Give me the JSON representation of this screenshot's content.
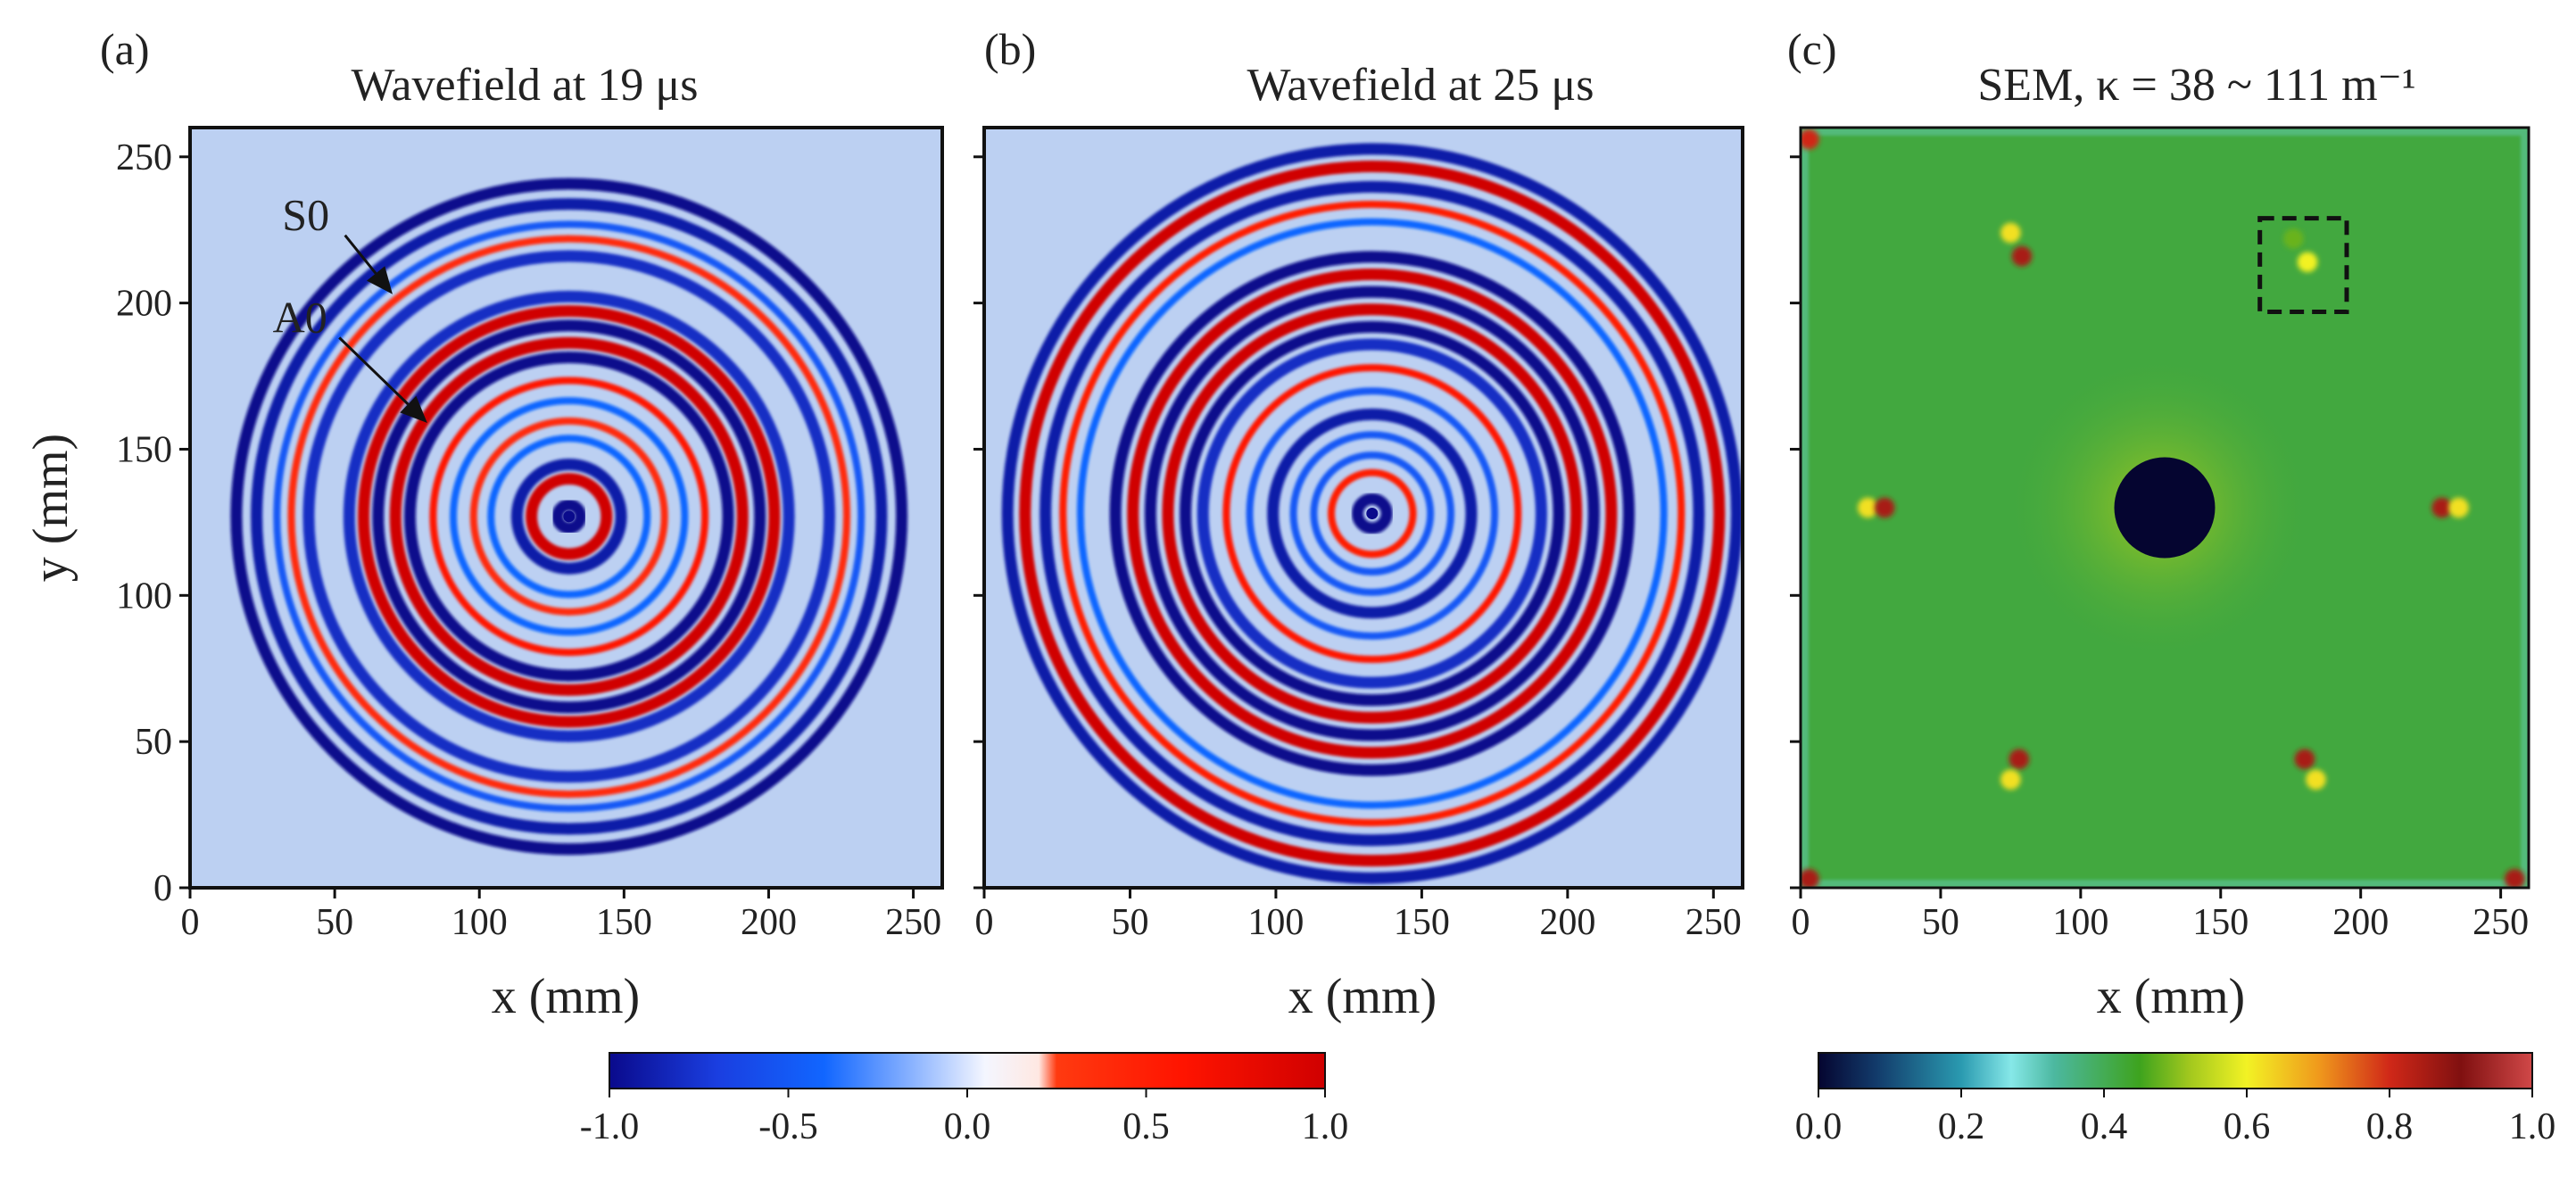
{
  "chart_data": [
    {
      "type": "heatmap",
      "panel_label": "(a)",
      "title": "Wavefield at 19 μs",
      "xlabel": "x (mm)",
      "ylabel": "y (mm)",
      "xlim": [
        0,
        260
      ],
      "ylim": [
        0,
        260
      ],
      "xticks": [
        0,
        50,
        100,
        150,
        200,
        250
      ],
      "yticks": [
        0,
        50,
        100,
        150,
        200,
        250
      ],
      "colorbar": "diverging",
      "wave_center": [
        131,
        127
      ],
      "rings": [
        {
          "radius": 4,
          "value": -1.0
        },
        {
          "radius": 13,
          "value": 1.0
        },
        {
          "radius": 18,
          "value": -0.9
        },
        {
          "radius": 27,
          "value": -0.4
        },
        {
          "radius": 33,
          "value": 0.4
        },
        {
          "radius": 40,
          "value": -0.4
        },
        {
          "radius": 47,
          "value": 0.6
        },
        {
          "radius": 55,
          "value": -1.0
        },
        {
          "radius": 60,
          "value": 1.0
        },
        {
          "radius": 66,
          "value": -1.0
        },
        {
          "radius": 71,
          "value": 1.0
        },
        {
          "radius": 76,
          "value": -0.8
        },
        {
          "radius": 90,
          "value": -0.8
        },
        {
          "radius": 96,
          "value": 0.4
        },
        {
          "radius": 101,
          "value": -0.5
        },
        {
          "radius": 108,
          "value": -0.9
        },
        {
          "radius": 115,
          "value": -1.0
        }
      ],
      "annotations": [
        {
          "text": "S0",
          "text_at": [
            40,
            225
          ],
          "arrow_to": [
            70,
            203
          ]
        },
        {
          "text": "A0",
          "text_at": [
            38,
            190
          ],
          "arrow_to": [
            82,
            159
          ]
        }
      ]
    },
    {
      "type": "heatmap",
      "panel_label": "(b)",
      "title": "Wavefield at 25 μs",
      "xlabel": "x (mm)",
      "xlim": [
        0,
        260
      ],
      "ylim": [
        0,
        260
      ],
      "xticks": [
        0,
        50,
        100,
        150,
        200,
        250
      ],
      "yticks": [
        0,
        50,
        100,
        150,
        200,
        250
      ],
      "colorbar": "diverging",
      "wave_center": [
        133,
        128
      ],
      "rings": [
        {
          "radius": 5,
          "value": -1.0
        },
        {
          "radius": 14,
          "value": 0.5
        },
        {
          "radius": 20,
          "value": -0.5
        },
        {
          "radius": 27,
          "value": -0.5
        },
        {
          "radius": 34,
          "value": -0.9
        },
        {
          "radius": 42,
          "value": -0.5
        },
        {
          "radius": 50,
          "value": 0.6
        },
        {
          "radius": 58,
          "value": -0.8
        },
        {
          "radius": 64,
          "value": -1.0
        },
        {
          "radius": 70,
          "value": 1.0
        },
        {
          "radius": 76,
          "value": -1.0
        },
        {
          "radius": 82,
          "value": 1.0
        },
        {
          "radius": 88,
          "value": -1.0
        },
        {
          "radius": 100,
          "value": -0.4
        },
        {
          "radius": 106,
          "value": 0.5
        },
        {
          "radius": 112,
          "value": -0.9
        },
        {
          "radius": 119,
          "value": 1.0
        },
        {
          "radius": 125,
          "value": -0.9
        }
      ]
    },
    {
      "type": "heatmap",
      "panel_label": "(c)",
      "title": "SEM, κ = 38 ~ 111 m⁻¹",
      "xlabel": "x (mm)",
      "xlim": [
        0,
        260
      ],
      "ylim": [
        0,
        260
      ],
      "xticks": [
        0,
        50,
        100,
        150,
        200,
        250
      ],
      "yticks": [
        0,
        50,
        100,
        150,
        200,
        250
      ],
      "colorbar": "sequential",
      "background_value": 0.42,
      "hole": {
        "x": 130,
        "y": 130,
        "r": 18,
        "value": 0.0
      },
      "glow": {
        "x": 128,
        "y": 130,
        "r": 55,
        "value": 0.52
      },
      "hot_spots": [
        {
          "x": 75,
          "y": 224,
          "value": 0.62
        },
        {
          "x": 79,
          "y": 216,
          "value": 0.85
        },
        {
          "x": 176,
          "y": 222,
          "value": 0.48
        },
        {
          "x": 181,
          "y": 214,
          "value": 0.6
        },
        {
          "x": 24,
          "y": 130,
          "value": 0.62
        },
        {
          "x": 30,
          "y": 130,
          "value": 0.85
        },
        {
          "x": 229,
          "y": 130,
          "value": 0.85
        },
        {
          "x": 235,
          "y": 130,
          "value": 0.62
        },
        {
          "x": 78,
          "y": 44,
          "value": 0.85
        },
        {
          "x": 75,
          "y": 37,
          "value": 0.62
        },
        {
          "x": 180,
          "y": 44,
          "value": 0.85
        },
        {
          "x": 184,
          "y": 37,
          "value": 0.62
        },
        {
          "x": 3,
          "y": 3,
          "value": 0.85
        },
        {
          "x": 255,
          "y": 3,
          "value": 0.85
        },
        {
          "x": 3,
          "y": 256,
          "value": 0.8
        }
      ],
      "highlight_box": {
        "x0": 164,
        "x1": 195,
        "y0": 197,
        "y1": 229,
        "style": "dashed"
      }
    }
  ],
  "colorbars": [
    {
      "name": "diverging",
      "range": [
        -1.0,
        1.0
      ],
      "ticks": [
        "-1.0",
        "-0.5",
        "0.0",
        "0.5",
        "1.0"
      ],
      "stops": [
        {
          "value": -1.0,
          "color": "#0a0a8c"
        },
        {
          "value": -0.7,
          "color": "#1a3ee0"
        },
        {
          "value": -0.4,
          "color": "#1166ff"
        },
        {
          "value": -0.15,
          "color": "#8cb4ff"
        },
        {
          "value": 0.05,
          "color": "#f4f6ff"
        },
        {
          "value": 0.2,
          "color": "#ffe8e2"
        },
        {
          "value": 0.25,
          "color": "#ff3a10"
        },
        {
          "value": 0.6,
          "color": "#ff1400"
        },
        {
          "value": 1.0,
          "color": "#d00000"
        }
      ]
    },
    {
      "name": "sequential",
      "range": [
        0.0,
        1.0
      ],
      "ticks": [
        "0.0",
        "0.2",
        "0.4",
        "0.6",
        "0.8",
        "1.0"
      ],
      "stops": [
        {
          "value": 0.0,
          "color": "#050530"
        },
        {
          "value": 0.08,
          "color": "#123a6a"
        },
        {
          "value": 0.2,
          "color": "#2a9ab0"
        },
        {
          "value": 0.27,
          "color": "#86e8e8"
        },
        {
          "value": 0.33,
          "color": "#4cb8a0"
        },
        {
          "value": 0.45,
          "color": "#3ea31e"
        },
        {
          "value": 0.52,
          "color": "#a2c81e"
        },
        {
          "value": 0.6,
          "color": "#f2f224"
        },
        {
          "value": 0.7,
          "color": "#f09a1c"
        },
        {
          "value": 0.8,
          "color": "#d02818"
        },
        {
          "value": 0.9,
          "color": "#801010"
        },
        {
          "value": 1.0,
          "color": "#d04848"
        }
      ]
    }
  ],
  "colors": {
    "diverging_background": "#bcd0f2",
    "axis_frame": "#111111",
    "annotation": "#111111"
  }
}
